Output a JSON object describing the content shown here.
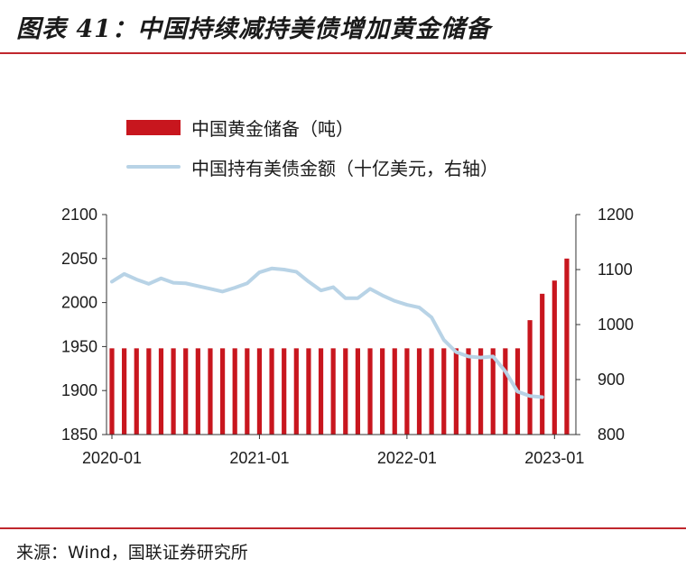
{
  "figure": {
    "title": "图表 41：中国持续减持美债增加黄金储备",
    "source": "来源：Wind，国联证券研究所"
  },
  "colors": {
    "accent": "#c0272d",
    "bar": "#c8161e",
    "line": "#b8d3e6"
  },
  "chart_data": {
    "type": "bar",
    "x_tick_labels": [
      "2020-01",
      "2021-01",
      "2022-01",
      "2023-01"
    ],
    "x_tick_index": [
      0,
      12,
      24,
      36
    ],
    "left_axis": {
      "ylim": [
        1850,
        2100
      ],
      "ticks": [
        1850,
        1900,
        1950,
        2000,
        2050,
        2100
      ]
    },
    "right_axis": {
      "ylim": [
        800,
        1200
      ],
      "ticks": [
        800,
        900,
        1000,
        1100,
        1200
      ]
    },
    "grid": false,
    "legend_position": "top-left",
    "series": [
      {
        "name": "中国黄金储备（吨）",
        "type": "bar",
        "axis": "left",
        "values": [
          1948,
          1948,
          1948,
          1948,
          1948,
          1948,
          1948,
          1948,
          1948,
          1948,
          1948,
          1948,
          1948,
          1948,
          1948,
          1948,
          1948,
          1948,
          1948,
          1948,
          1948,
          1948,
          1948,
          1948,
          1948,
          1948,
          1948,
          1948,
          1948,
          1948,
          1948,
          1948,
          1948,
          1948,
          1980,
          2010,
          2025,
          2050
        ]
      },
      {
        "name": "中国持有美债金额（十亿美元，右轴）",
        "type": "line",
        "axis": "right",
        "values": [
          1078,
          1092,
          1082,
          1074,
          1084,
          1076,
          1075,
          1070,
          1065,
          1060,
          1067,
          1075,
          1095,
          1102,
          1100,
          1096,
          1078,
          1062,
          1068,
          1048,
          1048,
          1065,
          1053,
          1043,
          1036,
          1031,
          1013,
          972,
          950,
          942,
          940,
          942,
          915,
          878,
          870,
          868
        ]
      }
    ]
  }
}
